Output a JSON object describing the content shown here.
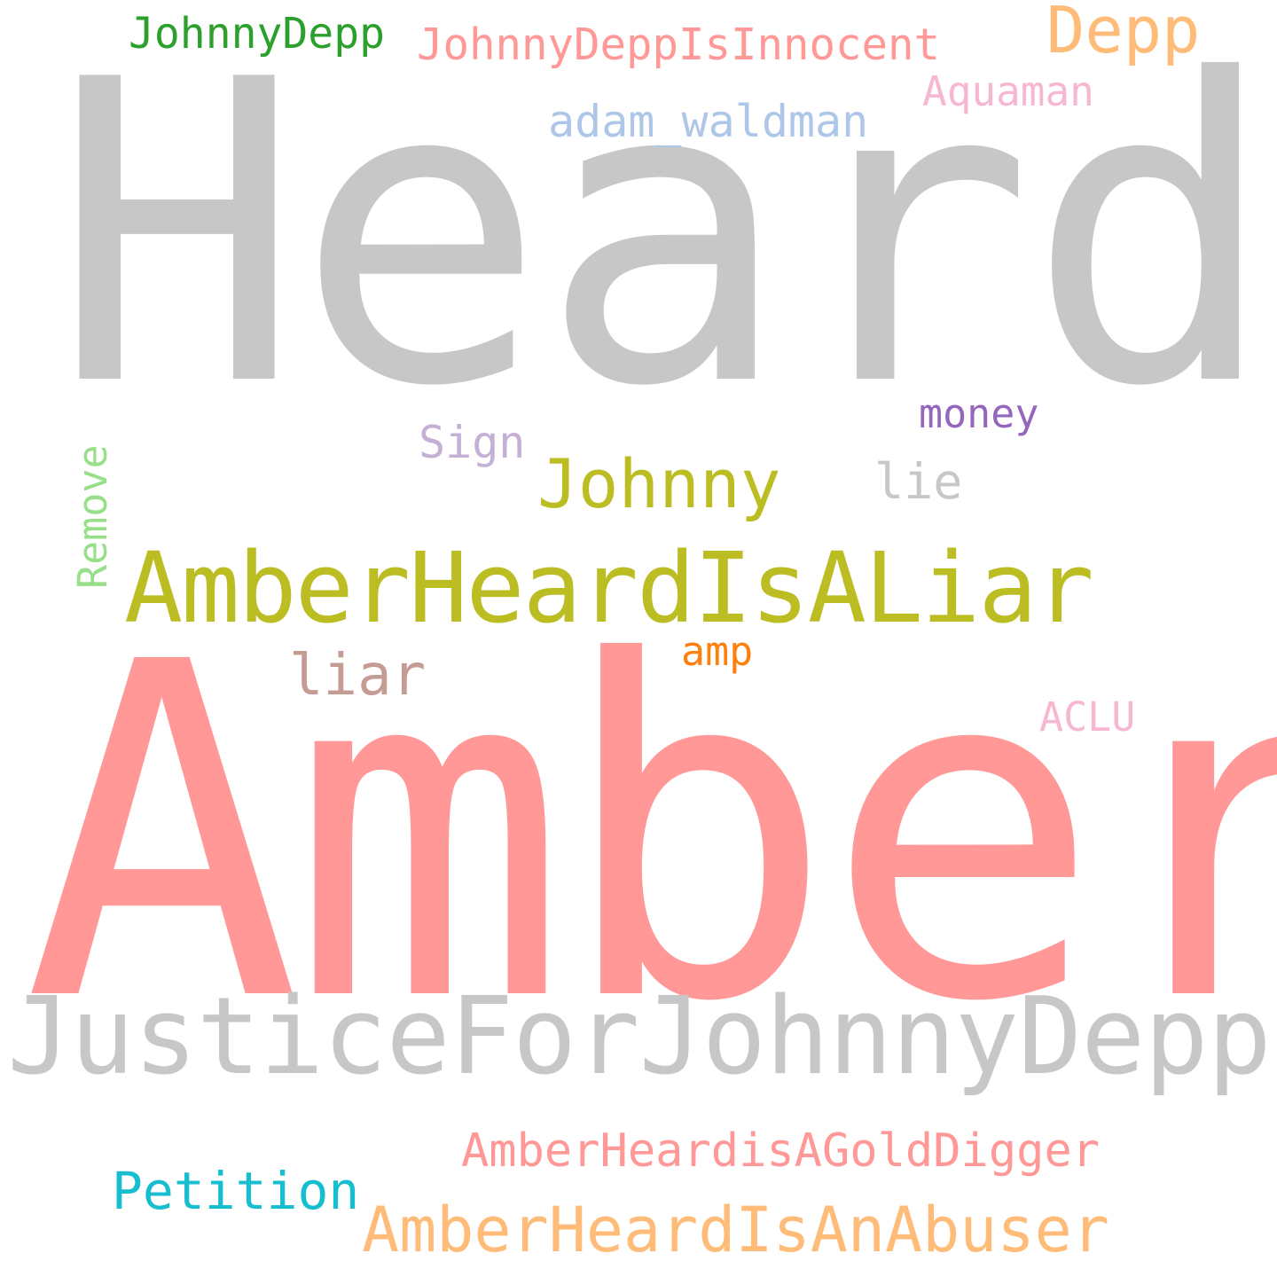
{
  "words": [
    {
      "id": "heard",
      "text": "Heard",
      "color": "#c7c7c7"
    },
    {
      "id": "amber",
      "text": "Amber",
      "color": "#ff9896"
    },
    {
      "id": "justicefor",
      "text": "JusticeForJohnnyDepp",
      "color": "#c7c7c7"
    },
    {
      "id": "amberheardisaliar",
      "text": "AmberHeardIsALiar",
      "color": "#bcbd22"
    },
    {
      "id": "amberheardisanabuser",
      "text": "AmberHeardIsAnAbuser",
      "color": "#ffbb78"
    },
    {
      "id": "amberheardisagolddigger",
      "text": "AmberHeardisAGoldDigger",
      "color": "#ff9896"
    },
    {
      "id": "johnny",
      "text": "Johnny",
      "color": "#bcbd22"
    },
    {
      "id": "depp",
      "text": "Depp",
      "color": "#ffbb78"
    },
    {
      "id": "johnnydeppisinnocent",
      "text": "JohnnyDeppIsInnocent",
      "color": "#ff9896"
    },
    {
      "id": "johnnydepp",
      "text": "JohnnyDepp",
      "color": "#2ca02c"
    },
    {
      "id": "aquaman",
      "text": "Aquaman",
      "color": "#f7b6d2"
    },
    {
      "id": "adam_waldman",
      "text": "adam_waldman",
      "color": "#aec7e8"
    },
    {
      "id": "money",
      "text": "money",
      "color": "#9467bd"
    },
    {
      "id": "sign",
      "text": "Sign",
      "color": "#c5b0d5"
    },
    {
      "id": "lie",
      "text": "lie",
      "color": "#c7c7c7"
    },
    {
      "id": "remove",
      "text": "Remove",
      "color": "#98df8a"
    },
    {
      "id": "liar",
      "text": "liar",
      "color": "#c49c94"
    },
    {
      "id": "amp",
      "text": "amp",
      "color": "#ff7f0e"
    },
    {
      "id": "aclu",
      "text": "ACLU",
      "color": "#f7b6d2"
    },
    {
      "id": "petition",
      "text": "Petition",
      "color": "#17becf"
    }
  ]
}
